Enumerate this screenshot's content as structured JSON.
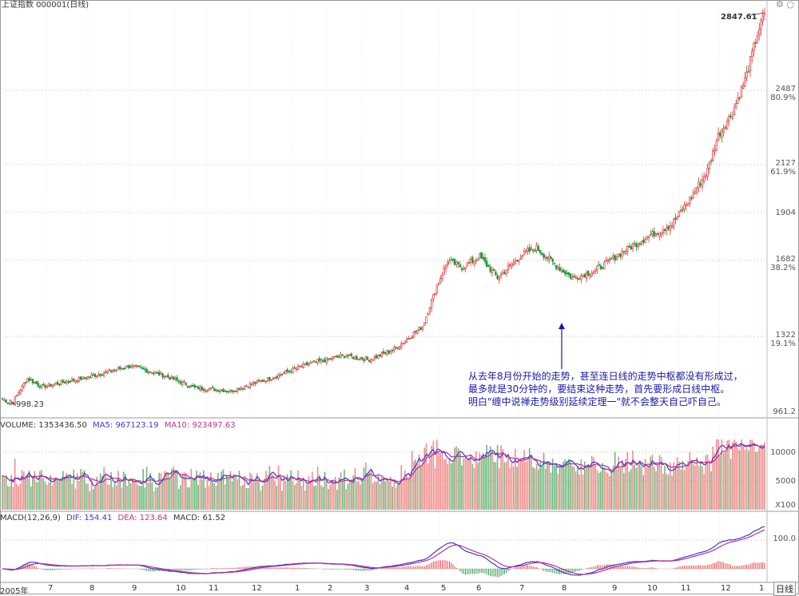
{
  "header": {
    "title": "上证指数 000001(日线)",
    "icons": [
      "settings-icon",
      "circle-icon"
    ]
  },
  "main_panel": {
    "peak_label": "2847.61",
    "trough_label": "998.23",
    "right_axis": [
      {
        "value": "2487",
        "pct": "80.9%"
      },
      {
        "value": "2127",
        "pct": "61.9%"
      },
      {
        "value": "1904",
        "pct": ""
      },
      {
        "value": "1682",
        "pct": "38.2%"
      },
      {
        "value": "1322",
        "pct": "19.1%"
      },
      {
        "value": "961.2",
        "pct": ""
      }
    ],
    "annotation_lines": [
      "从去年8月份开始的走势，甚至连日线的走势中枢都没有形成过，",
      "最多就是30分钟的，要结束这种走势，首先要形成日线中枢。",
      "明白\"缠中说禅走势级别延续定理一\"就不会整天自己吓自己。"
    ]
  },
  "volume_panel": {
    "header": {
      "volume_label": "VOLUME: 1353436.50",
      "ma5_label": "MA5: 967123.19",
      "ma10_label": "MA10: 923497.63"
    },
    "axis": [
      "10000",
      "5000",
      "X100"
    ]
  },
  "macd_panel": {
    "header": {
      "macd_label": "MACD(12,26,9)",
      "dif_label": "DIF: 154.41",
      "dea_label": "DEA: 123.64",
      "macd_val_label": "MACD: 61.52"
    },
    "axis": [
      "100.0"
    ]
  },
  "x_axis": {
    "labels": [
      "2005年",
      "7",
      "8",
      "9",
      "10",
      "11",
      "12",
      "1",
      "2",
      "3",
      "4",
      "5",
      "6",
      "7",
      "8",
      "9",
      "10",
      "11",
      "12",
      "1"
    ],
    "period_button": "日线"
  },
  "chart_data": {
    "type": "candlestick",
    "title": "上证指数 000001(日线)",
    "x_months": [
      "2005年",
      "7",
      "8",
      "9",
      "10",
      "11",
      "12",
      "1",
      "2",
      "3",
      "4",
      "5",
      "6",
      "7",
      "8",
      "9",
      "10",
      "11",
      "12",
      "1"
    ],
    "price_anchors": [
      {
        "idx": 0,
        "close": 1020
      },
      {
        "idx": 5,
        "close": 998
      },
      {
        "idx": 14,
        "close": 1120
      },
      {
        "idx": 22,
        "close": 1080
      },
      {
        "idx": 45,
        "close": 1120
      },
      {
        "idx": 72,
        "close": 1180
      },
      {
        "idx": 92,
        "close": 1130
      },
      {
        "idx": 108,
        "close": 1075
      },
      {
        "idx": 128,
        "close": 1060
      },
      {
        "idx": 150,
        "close": 1120
      },
      {
        "idx": 172,
        "close": 1190
      },
      {
        "idx": 192,
        "close": 1230
      },
      {
        "idx": 206,
        "close": 1210
      },
      {
        "idx": 220,
        "close": 1260
      },
      {
        "idx": 236,
        "close": 1370
      },
      {
        "idx": 244,
        "close": 1560
      },
      {
        "idx": 250,
        "close": 1680
      },
      {
        "idx": 258,
        "close": 1650
      },
      {
        "idx": 268,
        "close": 1700
      },
      {
        "idx": 278,
        "close": 1600
      },
      {
        "idx": 292,
        "close": 1710
      },
      {
        "idx": 300,
        "close": 1740
      },
      {
        "idx": 312,
        "close": 1650
      },
      {
        "idx": 320,
        "close": 1600
      },
      {
        "idx": 332,
        "close": 1630
      },
      {
        "idx": 348,
        "close": 1720
      },
      {
        "idx": 362,
        "close": 1790
      },
      {
        "idx": 376,
        "close": 1850
      },
      {
        "idx": 388,
        "close": 1990
      },
      {
        "idx": 396,
        "close": 2100
      },
      {
        "idx": 402,
        "close": 2270
      },
      {
        "idx": 410,
        "close": 2380
      },
      {
        "idx": 418,
        "close": 2560
      },
      {
        "idx": 424,
        "close": 2750
      },
      {
        "idx": 428,
        "close": 2847.61
      }
    ],
    "y_ticks": [
      961.2,
      1322,
      1682,
      1904,
      2127,
      2487,
      2847.61
    ],
    "fib_levels": [
      {
        "value": 1322,
        "pct": "19.1%"
      },
      {
        "value": 1682,
        "pct": "38.2%"
      },
      {
        "value": 2127,
        "pct": "61.9%"
      },
      {
        "value": 2487,
        "pct": "80.9%"
      }
    ],
    "high": 2847.61,
    "low": 998.23,
    "volume": {
      "last": 1353436.5,
      "ma5": 967123.19,
      "ma10": 923497.63,
      "unit": "X100",
      "y_ticks": [
        5000,
        10000
      ]
    },
    "macd": {
      "params": "12,26,9",
      "dif": 154.41,
      "dea": 123.64,
      "macd": 61.52,
      "y_ticks": [
        100.0
      ]
    },
    "colors": {
      "up": "#e23b3b",
      "down": "#1f9a3a",
      "ma5": "#3a3ad0",
      "ma10": "#c0308a",
      "grid": "#b8b8b8",
      "annotation": "#1a1aa8"
    }
  }
}
